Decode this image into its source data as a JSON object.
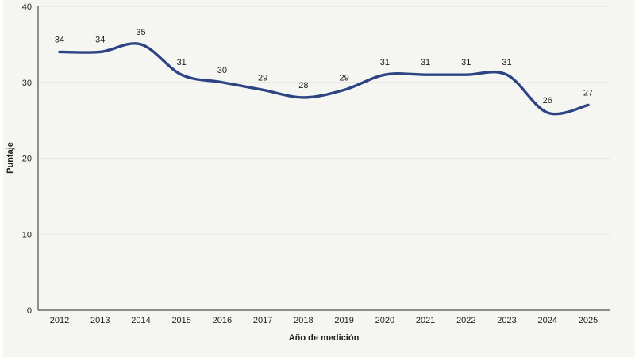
{
  "page": {
    "background": "#f5f5f2",
    "left_edge_color": "#ffffff"
  },
  "chart_data": {
    "type": "line",
    "x": [
      "2012",
      "2013",
      "2014",
      "2015",
      "2016",
      "2017",
      "2018",
      "2019",
      "2020",
      "2021",
      "2022",
      "2023",
      "2024",
      "2025"
    ],
    "values": [
      34,
      34,
      35,
      31,
      30,
      29,
      28,
      29,
      31,
      31,
      31,
      31,
      26,
      27
    ],
    "xlabel": "Año de medición",
    "ylabel": "Puntaje",
    "ylim": [
      0,
      40
    ],
    "yticks": [
      0,
      10,
      20,
      30,
      40
    ],
    "grid": "on",
    "legend": "none",
    "data_labels": "on",
    "marker": "none",
    "line_color": "#2e4384",
    "gridline_color": "#e5e5e2",
    "axis_color": "#4d4d4d",
    "text_color": "#1f1f1f"
  }
}
